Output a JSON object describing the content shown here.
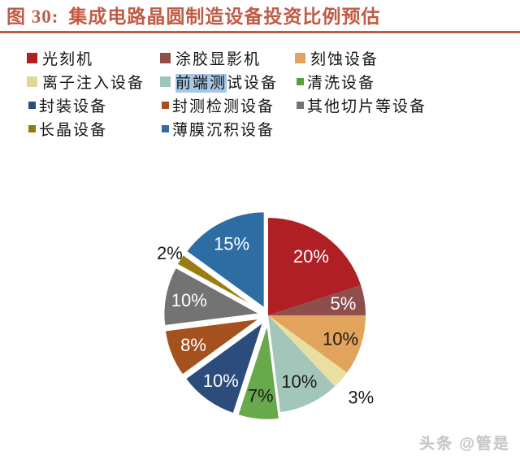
{
  "header": {
    "figure_label": "图 30:",
    "title": "集成电路晶圆制造设备投资比例预估",
    "accent_color": "#C05B45"
  },
  "legend": {
    "items": [
      {
        "label": "光刻机",
        "color": "#B01F24",
        "swatch": "large"
      },
      {
        "label": "涂胶显影机",
        "color": "#8F4D4C",
        "swatch": "large"
      },
      {
        "label": "刻蚀设备",
        "color": "#E2A45C",
        "swatch": "large"
      },
      {
        "label": "离子注入设备",
        "color": "#E0D79B",
        "swatch": "large"
      },
      {
        "label": "前端测试设备",
        "color": "#9FC4B9",
        "swatch": "large",
        "highlight_prefix": "前端测",
        "highlight_color": "#A7C8E4"
      },
      {
        "label": "清洗设备",
        "color": "#58A038",
        "swatch": "small"
      },
      {
        "label": "封装设备",
        "color": "#2C4C7C",
        "swatch": "small"
      },
      {
        "label": "封测检测设备",
        "color": "#A5511E",
        "swatch": "small"
      },
      {
        "label": "其他切片等设备",
        "color": "#737373",
        "swatch": "small"
      },
      {
        "label": "长晶设备",
        "color": "#8F7A0A",
        "swatch": "small"
      },
      {
        "label": "薄膜沉积设备",
        "color": "#2E6DA4",
        "swatch": "small"
      }
    ]
  },
  "chart_data": {
    "type": "pie",
    "title": "集成电路晶圆制造设备投资比例预估",
    "unit": "percent",
    "total": 100,
    "legend_position": "top",
    "slices": [
      {
        "name": "光刻机",
        "value": 20,
        "label": "20%",
        "color": "#B01F24",
        "label_color": "#FFFFFF",
        "exploded": false,
        "label_r": 0.75
      },
      {
        "name": "涂胶显影机",
        "value": 5,
        "label": "5%",
        "color": "#8F4D4C",
        "label_color": "#FFFFFF",
        "exploded": false,
        "label_r": 0.78
      },
      {
        "name": "刻蚀设备",
        "value": 10,
        "label": "10%",
        "color": "#E2A45C",
        "label_color": "#1A1A1A",
        "exploded": false,
        "label_r": 0.78
      },
      {
        "name": "离子注入设备",
        "value": 3,
        "label": "3%",
        "color": "#E9DFA3",
        "label_color": "#1A1A1A",
        "exploded": false,
        "label_r": 1.27
      },
      {
        "name": "前端测试设备",
        "value": 10,
        "label": "10%",
        "color": "#A3C6BB",
        "label_color": "#1A1A1A",
        "exploded": false,
        "label_r": 0.75
      },
      {
        "name": "清洗设备",
        "value": 7,
        "label": "7%",
        "color": "#68A94C",
        "label_color": "#1A1A1A",
        "exploded": true,
        "label_r": 0.75
      },
      {
        "name": "封装设备",
        "value": 10,
        "label": "10%",
        "color": "#2C4C7C",
        "label_color": "#FFFFFF",
        "exploded": true,
        "label_r": 0.75
      },
      {
        "name": "封测检测设备",
        "value": 8,
        "label": "8%",
        "color": "#A5511E",
        "label_color": "#FFFFFF",
        "exploded": true,
        "label_r": 0.75
      },
      {
        "name": "其他切片等设备",
        "value": 10,
        "label": "10%",
        "color": "#737373",
        "label_color": "#FFFFFF",
        "exploded": true,
        "label_r": 0.75
      },
      {
        "name": "长晶设备",
        "value": 2,
        "label": "2%",
        "color": "#9A7D10",
        "label_color": "#1A1A1A",
        "exploded": true,
        "label_r": 1.12
      },
      {
        "name": "薄膜沉积设备",
        "value": 15,
        "label": "15%",
        "color": "#2E6DA4",
        "label_color": "#FFFFFF",
        "exploded": true,
        "label_r": 0.75
      }
    ]
  },
  "watermark": {
    "text": "头条 @管是"
  }
}
